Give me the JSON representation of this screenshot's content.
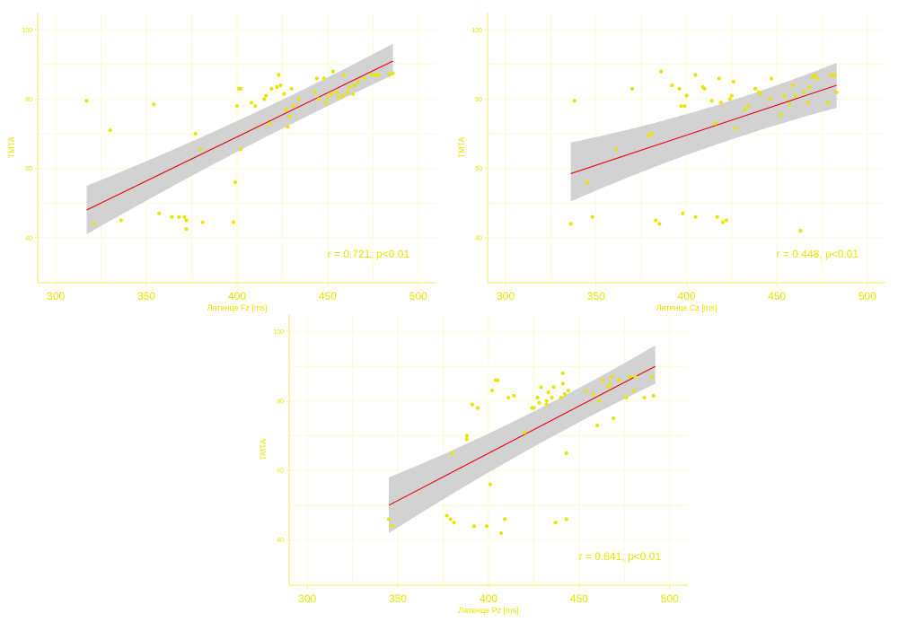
{
  "colors": {
    "points": "#e6e600",
    "fit_line": "#e8000b",
    "band": "#d2d2d2",
    "axes": "#f3f39a",
    "grid": "#fbfbd6",
    "text": "#e6e600"
  },
  "chart_data": [
    {
      "type": "scatter",
      "xlabel": "Латенце Fz [ms]",
      "ylabel": "TMTA",
      "xlim": [
        290,
        510
      ],
      "ylim": [
        27,
        105
      ],
      "xticks": [
        300,
        350,
        400,
        450,
        500
      ],
      "yticks": [
        40,
        60,
        80,
        100
      ],
      "grid": true,
      "annotation": "r = 0.721, p<0.01",
      "fit": {
        "x": [
          317,
          486
        ],
        "y": [
          48,
          91
        ],
        "band_lower": [
          41,
          87
        ],
        "band_upper": [
          55,
          96
        ]
      },
      "points": [
        [
          317,
          79.5
        ],
        [
          321,
          44
        ],
        [
          330,
          71
        ],
        [
          336,
          45
        ],
        [
          354,
          78.5
        ],
        [
          357,
          47
        ],
        [
          364,
          46
        ],
        [
          368,
          46
        ],
        [
          371,
          46
        ],
        [
          372,
          45
        ],
        [
          372,
          42.5
        ],
        [
          377,
          70
        ],
        [
          380,
          65.5
        ],
        [
          381,
          44.5
        ],
        [
          398,
          44.5
        ],
        [
          399,
          56
        ],
        [
          400,
          78
        ],
        [
          401,
          83
        ],
        [
          402,
          83
        ],
        [
          402,
          65.5
        ],
        [
          408,
          79
        ],
        [
          410,
          78
        ],
        [
          415,
          80
        ],
        [
          416,
          81
        ],
        [
          418,
          73
        ],
        [
          419,
          83
        ],
        [
          422,
          83.5
        ],
        [
          423,
          87
        ],
        [
          424,
          84
        ],
        [
          426,
          81.5
        ],
        [
          427,
          77
        ],
        [
          428,
          72
        ],
        [
          429,
          75
        ],
        [
          430,
          83
        ],
        [
          431,
          78
        ],
        [
          434,
          80
        ],
        [
          443,
          82
        ],
        [
          444,
          86
        ],
        [
          445,
          80
        ],
        [
          448,
          86
        ],
        [
          449,
          79
        ],
        [
          450,
          80.5
        ],
        [
          452,
          81.5
        ],
        [
          453,
          88
        ],
        [
          455,
          82
        ],
        [
          456,
          80.5
        ],
        [
          458,
          81
        ],
        [
          459,
          87
        ],
        [
          461,
          82
        ],
        [
          462,
          83.5
        ],
        [
          464,
          81.5
        ],
        [
          465,
          84
        ],
        [
          467,
          85
        ],
        [
          470,
          86
        ],
        [
          474,
          87
        ],
        [
          476,
          87
        ],
        [
          478,
          87
        ],
        [
          484,
          87
        ],
        [
          486,
          87.5
        ]
      ]
    },
    {
      "type": "scatter",
      "xlabel": "Латенце Cz [ms]",
      "ylabel": "TMTA",
      "xlim": [
        290,
        510
      ],
      "ylim": [
        27,
        105
      ],
      "xticks": [
        300,
        350,
        400,
        450,
        500
      ],
      "yticks": [
        40,
        60,
        80,
        100
      ],
      "grid": true,
      "annotation": "r = 0.448, p<0.01",
      "fit": {
        "x": [
          336,
          483
        ],
        "y": [
          58.5,
          84
        ],
        "band_lower": [
          50.5,
          77.5
        ],
        "band_upper": [
          67.5,
          90.5
        ]
      },
      "points": [
        [
          336,
          44
        ],
        [
          338,
          79.5
        ],
        [
          345,
          56
        ],
        [
          348,
          46
        ],
        [
          361,
          65.5
        ],
        [
          370,
          83
        ],
        [
          379,
          69.5
        ],
        [
          381,
          70
        ],
        [
          383,
          45
        ],
        [
          385,
          44
        ],
        [
          386,
          88
        ],
        [
          392,
          84
        ],
        [
          396,
          83
        ],
        [
          397,
          78
        ],
        [
          398,
          47
        ],
        [
          399,
          78
        ],
        [
          400,
          81
        ],
        [
          405,
          46
        ],
        [
          405,
          87
        ],
        [
          409,
          83.5
        ],
        [
          410,
          83
        ],
        [
          414,
          79.5
        ],
        [
          416,
          73
        ],
        [
          417,
          46
        ],
        [
          418,
          86
        ],
        [
          419,
          79
        ],
        [
          420,
          44.5
        ],
        [
          422,
          45
        ],
        [
          424,
          80
        ],
        [
          425,
          81
        ],
        [
          426,
          85
        ],
        [
          427,
          71.5
        ],
        [
          432,
          77
        ],
        [
          434,
          78
        ],
        [
          438,
          83
        ],
        [
          440,
          82
        ],
        [
          441,
          81.5
        ],
        [
          446,
          80
        ],
        [
          447,
          86
        ],
        [
          452,
          75.5
        ],
        [
          454,
          81
        ],
        [
          457,
          78.5
        ],
        [
          459,
          84
        ],
        [
          460,
          81
        ],
        [
          463,
          42
        ],
        [
          465,
          82
        ],
        [
          467,
          79
        ],
        [
          468,
          83.5
        ],
        [
          470,
          86.5
        ],
        [
          471,
          87
        ],
        [
          472,
          86
        ],
        [
          478,
          79
        ],
        [
          480,
          87
        ],
        [
          482,
          87
        ],
        [
          483,
          82
        ]
      ]
    },
    {
      "type": "scatter",
      "xlabel": "Латенце Pz [ms]",
      "ylabel": "TMTA",
      "xlim": [
        290,
        510
      ],
      "ylim": [
        27,
        105
      ],
      "xticks": [
        300,
        350,
        400,
        450,
        500
      ],
      "yticks": [
        40,
        60,
        80,
        100
      ],
      "grid": true,
      "annotation": "r = 0.641, p<0.01",
      "fit": {
        "x": [
          345,
          492
        ],
        "y": [
          50,
          90
        ],
        "band_lower": [
          42,
          85
        ],
        "band_upper": [
          58,
          96
        ]
      },
      "points": [
        [
          345,
          46
        ],
        [
          347,
          44
        ],
        [
          377,
          47
        ],
        [
          379,
          46
        ],
        [
          380,
          65
        ],
        [
          381,
          45
        ],
        [
          388,
          70
        ],
        [
          388,
          69
        ],
        [
          391,
          79
        ],
        [
          392,
          44
        ],
        [
          394,
          78
        ],
        [
          399,
          44
        ],
        [
          401,
          56
        ],
        [
          402,
          83
        ],
        [
          404,
          86
        ],
        [
          405,
          86
        ],
        [
          407,
          42
        ],
        [
          409,
          46
        ],
        [
          411,
          81
        ],
        [
          414,
          81.5
        ],
        [
          420,
          71
        ],
        [
          424,
          78
        ],
        [
          425,
          78
        ],
        [
          427,
          81
        ],
        [
          428,
          79.5
        ],
        [
          429,
          84
        ],
        [
          432,
          80
        ],
        [
          432,
          79
        ],
        [
          433,
          82.5
        ],
        [
          435,
          81
        ],
        [
          436,
          84
        ],
        [
          437,
          45
        ],
        [
          440,
          81
        ],
        [
          441,
          85
        ],
        [
          441,
          88
        ],
        [
          442,
          82
        ],
        [
          443,
          65
        ],
        [
          443,
          46
        ],
        [
          444,
          83
        ],
        [
          454,
          83
        ],
        [
          458,
          82
        ],
        [
          460,
          73
        ],
        [
          461,
          80
        ],
        [
          463,
          86
        ],
        [
          466,
          84
        ],
        [
          467,
          85
        ],
        [
          468,
          87
        ],
        [
          469,
          75
        ],
        [
          472,
          86
        ],
        [
          476,
          81
        ],
        [
          478,
          87
        ],
        [
          480,
          83
        ],
        [
          481,
          87
        ],
        [
          486,
          81
        ],
        [
          490,
          87
        ],
        [
          491,
          81.5
        ]
      ]
    }
  ]
}
